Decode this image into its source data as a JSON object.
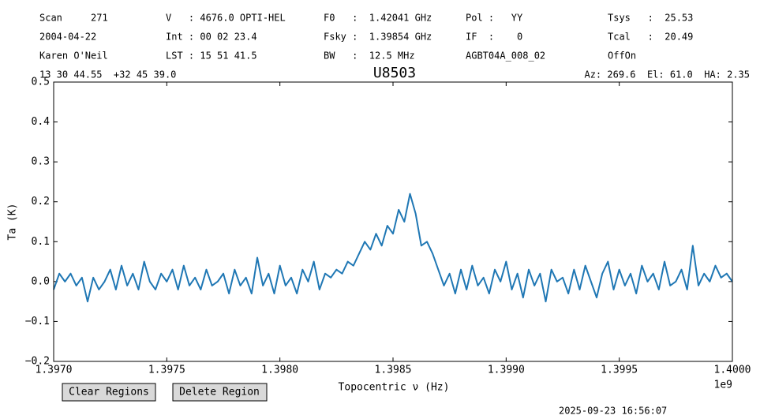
{
  "header": {
    "columns": [
      [
        "Scan     271",
        "2004-04-22",
        "Karen O'Neil"
      ],
      [
        "V   : 4676.0 OPTI-HEL",
        "Int : 00 02 23.4",
        "LST : 15 51 41.5"
      ],
      [
        "F0   :  1.42041 GHz",
        "Fsky :  1.39854 GHz",
        "BW   :  12.5 MHz"
      ],
      [
        "Pol :   YY",
        "IF  :    0",
        "AGBT04A_008_02"
      ],
      [
        "Tsys   :  25.53",
        "Tcal   :  20.49",
        "OffOn"
      ]
    ],
    "coordinates": "13 30 44.55  +32 45 39.0",
    "pointing": "Az: 269.6  El: 61.0  HA: 2.35"
  },
  "buttons": [
    "Clear Regions",
    "Delete Region"
  ],
  "timestamp": "2025-09-23 16:56:07",
  "chart_data": {
    "type": "line",
    "title": "U8503",
    "xlabel": "Topocentric ν (Hz)",
    "ylabel": "Ta (K)",
    "x_offset_label": "1e9",
    "color": "#1f77b4",
    "grid": false,
    "xlim": [
      1.397,
      1.4
    ],
    "ylim": [
      -0.2,
      0.5
    ],
    "xticks": [
      {
        "value": 1.397,
        "label": "1.3970"
      },
      {
        "value": 1.3975,
        "label": "1.3975"
      },
      {
        "value": 1.398,
        "label": "1.3980"
      },
      {
        "value": 1.3985,
        "label": "1.3985"
      },
      {
        "value": 1.399,
        "label": "1.3990"
      },
      {
        "value": 1.3995,
        "label": "1.3995"
      },
      {
        "value": 1.4,
        "label": "1.4000"
      }
    ],
    "yticks": [
      {
        "value": -0.2,
        "label": "−0.2"
      },
      {
        "value": -0.1,
        "label": "−0.1"
      },
      {
        "value": 0,
        "label": "0.0"
      },
      0.1,
      0.2,
      0.3,
      0.4,
      0.5
    ],
    "x": [
      1.397,
      1.397025,
      1.39705,
      1.397075,
      1.3971,
      1.397125,
      1.39715,
      1.397175,
      1.3972,
      1.397225,
      1.39725,
      1.397275,
      1.3973,
      1.397325,
      1.39735,
      1.397375,
      1.3974,
      1.397425,
      1.39745,
      1.397475,
      1.3975,
      1.397525,
      1.39755,
      1.397575,
      1.3976,
      1.397625,
      1.39765,
      1.397675,
      1.3977,
      1.397725,
      1.39775,
      1.397775,
      1.3978,
      1.397825,
      1.39785,
      1.397875,
      1.3979,
      1.397925,
      1.39795,
      1.397975,
      1.398,
      1.398025,
      1.39805,
      1.398075,
      1.3981,
      1.398125,
      1.39815,
      1.398175,
      1.3982,
      1.398225,
      1.39825,
      1.398275,
      1.3983,
      1.398325,
      1.39835,
      1.398375,
      1.3984,
      1.398425,
      1.39845,
      1.398475,
      1.3985,
      1.398525,
      1.39855,
      1.398575,
      1.3986,
      1.398625,
      1.39865,
      1.398675,
      1.3987,
      1.398725,
      1.39875,
      1.398775,
      1.3988,
      1.398825,
      1.39885,
      1.398875,
      1.3989,
      1.398925,
      1.39895,
      1.398975,
      1.399,
      1.399025,
      1.39905,
      1.399075,
      1.3991,
      1.399125,
      1.39915,
      1.399175,
      1.3992,
      1.399225,
      1.39925,
      1.399275,
      1.3993,
      1.399325,
      1.39935,
      1.399375,
      1.3994,
      1.399425,
      1.39945,
      1.399475,
      1.3995,
      1.399525,
      1.39955,
      1.399575,
      1.3996,
      1.399625,
      1.39965,
      1.399675,
      1.3997,
      1.399725,
      1.39975,
      1.399775,
      1.3998,
      1.399825,
      1.39985,
      1.399875,
      1.3999,
      1.399925,
      1.39995,
      1.399975,
      1.4
    ],
    "values": [
      -0.02,
      0.02,
      0.0,
      0.02,
      -0.01,
      0.01,
      -0.05,
      0.01,
      -0.02,
      0.0,
      0.03,
      -0.02,
      0.04,
      -0.01,
      0.02,
      -0.02,
      0.05,
      0.0,
      -0.02,
      0.02,
      0.0,
      0.03,
      -0.02,
      0.04,
      -0.01,
      0.01,
      -0.02,
      0.03,
      -0.01,
      0.0,
      0.02,
      -0.03,
      0.03,
      -0.01,
      0.01,
      -0.03,
      0.06,
      -0.01,
      0.02,
      -0.03,
      0.04,
      -0.01,
      0.01,
      -0.03,
      0.03,
      0.0,
      0.05,
      -0.02,
      0.02,
      0.01,
      0.03,
      0.02,
      0.05,
      0.04,
      0.07,
      0.1,
      0.08,
      0.12,
      0.09,
      0.14,
      0.12,
      0.18,
      0.15,
      0.22,
      0.17,
      0.09,
      0.1,
      0.07,
      0.03,
      -0.01,
      0.02,
      -0.03,
      0.03,
      -0.02,
      0.04,
      -0.01,
      0.01,
      -0.03,
      0.03,
      0.0,
      0.05,
      -0.02,
      0.02,
      -0.04,
      0.03,
      -0.01,
      0.02,
      -0.05,
      0.03,
      0.0,
      0.01,
      -0.03,
      0.03,
      -0.02,
      0.04,
      0.0,
      -0.04,
      0.02,
      0.05,
      -0.02,
      0.03,
      -0.01,
      0.02,
      -0.03,
      0.04,
      0.0,
      0.02,
      -0.02,
      0.05,
      -0.01,
      0.0,
      0.03,
      -0.02,
      0.09,
      -0.01,
      0.02,
      0.0,
      0.04,
      0.01,
      0.02,
      0.0
    ]
  }
}
